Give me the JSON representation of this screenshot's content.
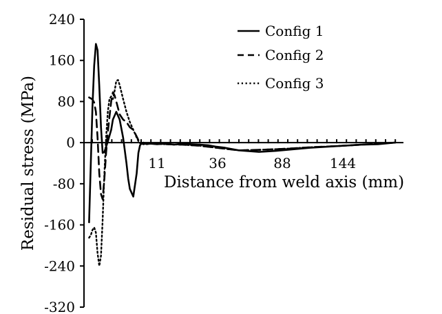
{
  "chart_data": {
    "type": "line",
    "title": "",
    "xlabel": "Distance from weld axis (mm)",
    "ylabel": "Residual stress (MPa)",
    "xlim": [
      -3,
      185
    ],
    "ylim": [
      -320,
      240
    ],
    "y_ticks": [
      240,
      160,
      80,
      0,
      -80,
      -160,
      -240,
      -320
    ],
    "x_ticks": [
      11,
      36,
      88,
      144
    ],
    "x_tick_labels": [
      "11",
      "36",
      "88",
      "144"
    ],
    "grid": false,
    "legend": {
      "position": "top-right"
    },
    "series": [
      {
        "name": "Config 1",
        "style": "solid",
        "color": "#000000",
        "x": [
          0,
          1,
          2,
          3,
          4,
          5,
          6,
          7,
          8,
          9,
          10,
          11,
          13,
          14,
          16,
          18,
          20,
          22,
          23,
          24,
          26,
          28,
          29,
          30,
          31,
          32,
          33,
          34,
          36,
          40,
          45,
          50,
          55,
          60,
          65,
          70,
          75,
          80,
          88,
          100,
          110,
          120,
          130,
          140,
          150,
          160,
          170,
          180
        ],
        "y": [
          -155,
          -40,
          70,
          150,
          192,
          180,
          110,
          30,
          -20,
          -18,
          -8,
          2,
          25,
          45,
          60,
          45,
          10,
          -40,
          -70,
          -90,
          -105,
          -60,
          -20,
          -5,
          -1,
          0,
          -2,
          -3,
          -2,
          -3,
          -2,
          -4,
          -2,
          -3,
          -4,
          -5,
          -8,
          -10,
          -15,
          -18,
          -16,
          -13,
          -10,
          -8,
          -6,
          -4,
          -3,
          0
        ]
      },
      {
        "name": "Config 2",
        "style": "dashed",
        "color": "#000000",
        "x": [
          0,
          1,
          2,
          3,
          4,
          5,
          6,
          7,
          8,
          9,
          10,
          11,
          12,
          13,
          14,
          15,
          16,
          18,
          20,
          22,
          24,
          26,
          28,
          29,
          30,
          31,
          32,
          33,
          36,
          45,
          55,
          65,
          75,
          88,
          100,
          115,
          130,
          150,
          165,
          180
        ],
        "y": [
          88,
          86,
          84,
          78,
          60,
          10,
          -60,
          -100,
          -110,
          -70,
          -20,
          20,
          50,
          80,
          98,
          92,
          80,
          55,
          45,
          40,
          30,
          25,
          12,
          5,
          0,
          -2,
          -3,
          -2,
          -2,
          -3,
          -4,
          -6,
          -10,
          -15,
          -14,
          -12,
          -9,
          -6,
          -3,
          0
        ]
      },
      {
        "name": "Config 3",
        "style": "dotted",
        "color": "#000000",
        "x": [
          0,
          1,
          2,
          3,
          4,
          5,
          6,
          7,
          8,
          9,
          10,
          11,
          12,
          13,
          14,
          15,
          16,
          17,
          18,
          20,
          22,
          24,
          26,
          28,
          29,
          30,
          31,
          32,
          33,
          36,
          45,
          55,
          65,
          75,
          88,
          100,
          115,
          130,
          150,
          165,
          180
        ],
        "y": [
          -185,
          -180,
          -170,
          -165,
          -175,
          -215,
          -240,
          -220,
          -150,
          -60,
          10,
          60,
          85,
          90,
          85,
          100,
          120,
          122,
          112,
          85,
          60,
          40,
          25,
          10,
          3,
          -1,
          -2,
          -3,
          -2,
          -2,
          -3,
          -4,
          -6,
          -10,
          -15,
          -14,
          -12,
          -9,
          -6,
          -3,
          0
        ]
      }
    ]
  }
}
